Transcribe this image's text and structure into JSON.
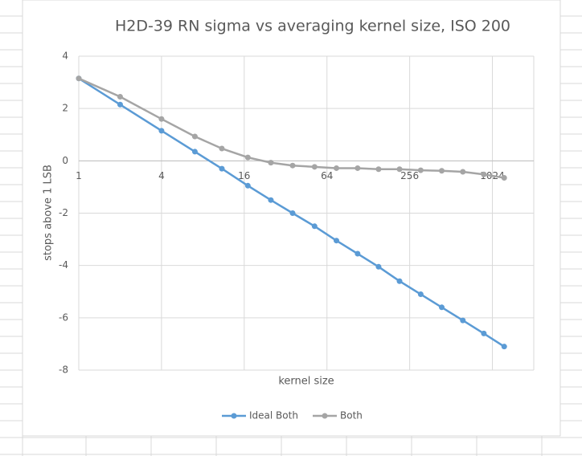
{
  "chart_data": {
    "type": "line",
    "title": "H2D-39 RN sigma vs averaging kernel size, ISO 200",
    "x_label": "kernel size",
    "y_label": "stops above 1 LSB",
    "x": [
      1,
      2,
      4,
      7,
      11,
      17,
      25,
      36,
      52,
      75,
      107,
      152,
      216,
      308,
      438,
      624,
      887,
      1248
    ],
    "series": [
      {
        "name": "Ideal Both",
        "color": "#5b9bd5",
        "values": [
          3.15,
          2.15,
          1.15,
          0.35,
          -0.3,
          -0.95,
          -1.5,
          -2.0,
          -2.5,
          -3.05,
          -3.55,
          -4.05,
          -4.6,
          -5.1,
          -5.6,
          -6.1,
          -6.6,
          -7.1
        ]
      },
      {
        "name": "Both",
        "color": "#a5a5a5",
        "values": [
          3.15,
          2.45,
          1.6,
          0.93,
          0.47,
          0.13,
          -0.07,
          -0.18,
          -0.23,
          -0.28,
          -0.28,
          -0.32,
          -0.32,
          -0.36,
          -0.38,
          -0.42,
          -0.52,
          -0.65
        ]
      }
    ],
    "xscale": "log",
    "xlog_base": 2,
    "xlim": [
      1,
      2048
    ],
    "xticks": [
      1,
      4,
      16,
      64,
      256,
      1024
    ],
    "ylim": [
      -8,
      4
    ],
    "yticks": [
      -8,
      -6,
      -4,
      -2,
      0,
      2,
      4
    ],
    "grid": true,
    "legend": "bottom"
  }
}
